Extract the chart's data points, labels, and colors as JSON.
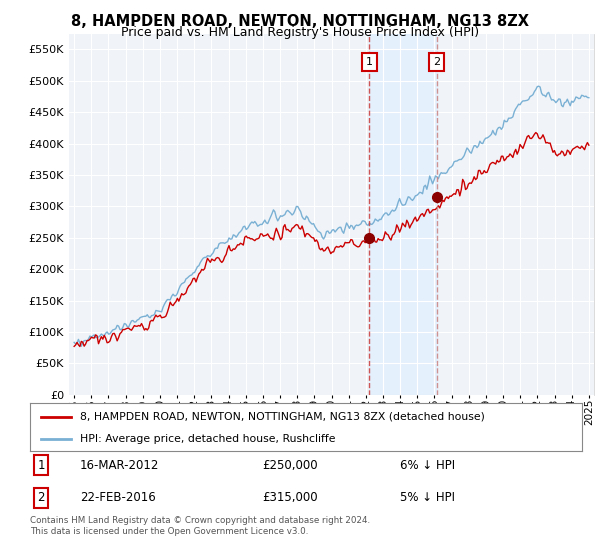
{
  "title": "8, HAMPDEN ROAD, NEWTON, NOTTINGHAM, NG13 8ZX",
  "subtitle": "Price paid vs. HM Land Registry's House Price Index (HPI)",
  "ylim": [
    0,
    575000
  ],
  "xlim_start": 1994.7,
  "xlim_end": 2025.3,
  "transaction1_date": 2012.21,
  "transaction1_price": 250000,
  "transaction2_date": 2016.14,
  "transaction2_price": 315000,
  "legend_line1": "8, HAMPDEN ROAD, NEWTON, NOTTINGHAM, NG13 8ZX (detached house)",
  "legend_line2": "HPI: Average price, detached house, Rushcliffe",
  "footer": "Contains HM Land Registry data © Crown copyright and database right 2024.\nThis data is licensed under the Open Government Licence v3.0.",
  "line_color_red": "#cc0000",
  "line_color_blue": "#7ab0d4",
  "background_color": "#ffffff",
  "plot_bg_color": "#f0f4f8",
  "grid_color": "#ffffff",
  "shade_color": "#ddeeff",
  "title_fontsize": 10.5,
  "subtitle_fontsize": 9
}
